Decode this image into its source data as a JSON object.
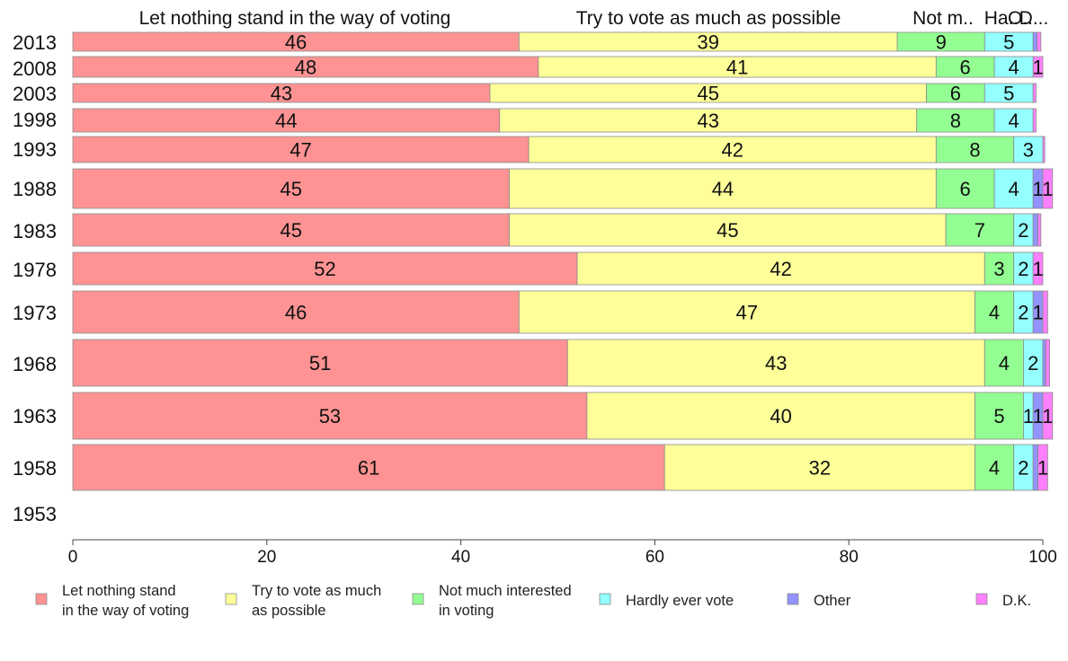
{
  "chart_data": {
    "type": "bar",
    "orientation": "horizontal",
    "stacked": true,
    "title": "",
    "xlabel": "",
    "ylabel": "",
    "xlim": [
      0,
      100
    ],
    "x_ticks": [
      "0",
      "20",
      "40",
      "60",
      "80",
      "100"
    ],
    "legend_position": "bottom",
    "grid": false,
    "categories": [
      "2013",
      "2008",
      "2003",
      "1998",
      "1993",
      "1988",
      "1983",
      "1978",
      "1973",
      "1968",
      "1963",
      "1958",
      "1953"
    ],
    "series": [
      {
        "name": "Let nothing stand in the way of voting",
        "legend_lines": [
          "Let nothing stand",
          "in the way of voting"
        ],
        "header": "Let nothing stand in the way of voting",
        "color": "#ff9393",
        "values": [
          46,
          48,
          43,
          44,
          47,
          45,
          45,
          52,
          46,
          51,
          53,
          61,
          null
        ]
      },
      {
        "name": "Try to vote as much as possible",
        "legend_lines": [
          "Try to vote as much",
          "as possible"
        ],
        "header": "Try to vote as much as possible",
        "color": "#ffff99",
        "values": [
          39,
          41,
          45,
          43,
          42,
          44,
          45,
          42,
          47,
          43,
          40,
          32,
          null
        ]
      },
      {
        "name": "Not much interested in voting",
        "legend_lines": [
          "Not much interested",
          "in voting"
        ],
        "header": "Not m..",
        "color": "#93ff93",
        "values": [
          9,
          6,
          6,
          8,
          8,
          6,
          7,
          3,
          4,
          4,
          5,
          4,
          null
        ]
      },
      {
        "name": "Hardly ever vote",
        "legend_lines": [
          "Hardly ever vote"
        ],
        "header": "Ha..",
        "color": "#93ffff",
        "values": [
          5,
          4,
          5,
          4,
          3,
          4,
          2,
          2,
          2,
          2,
          1,
          2,
          null
        ]
      },
      {
        "name": "Other",
        "legend_lines": [
          "Other"
        ],
        "header": "O..",
        "color": "#9393ff",
        "values": [
          0.4,
          0,
          0,
          0,
          0,
          1,
          0.5,
          0,
          1,
          0.3,
          1,
          0.5,
          null
        ]
      },
      {
        "name": "D.K.",
        "legend_lines": [
          "D.K."
        ],
        "header": "D...",
        "color": "#ff80ff",
        "values": [
          0.4,
          1,
          0.3,
          0.3,
          0.2,
          1,
          0.3,
          1,
          0.5,
          0.4,
          1,
          1,
          null
        ]
      }
    ],
    "segment_labels": [
      [
        "46",
        "39",
        "9",
        "5",
        "",
        ""
      ],
      [
        "48",
        "41",
        "6",
        "4",
        "",
        "1"
      ],
      [
        "43",
        "45",
        "6",
        "5",
        "",
        ""
      ],
      [
        "44",
        "43",
        "8",
        "4",
        "",
        ""
      ],
      [
        "47",
        "42",
        "8",
        "3",
        "",
        ""
      ],
      [
        "45",
        "44",
        "6",
        "4",
        "1",
        "1"
      ],
      [
        "45",
        "45",
        "7",
        "2",
        "",
        ""
      ],
      [
        "52",
        "42",
        "3",
        "2",
        "",
        "1"
      ],
      [
        "46",
        "47",
        "4",
        "2",
        "1",
        ""
      ],
      [
        "51",
        "43",
        "4",
        "2",
        "",
        ""
      ],
      [
        "53",
        "40",
        "5",
        "1",
        "1",
        "1"
      ],
      [
        "61",
        "32",
        "4",
        "2",
        "",
        "1"
      ],
      [
        "",
        "",
        "",
        "",
        "",
        ""
      ]
    ]
  }
}
